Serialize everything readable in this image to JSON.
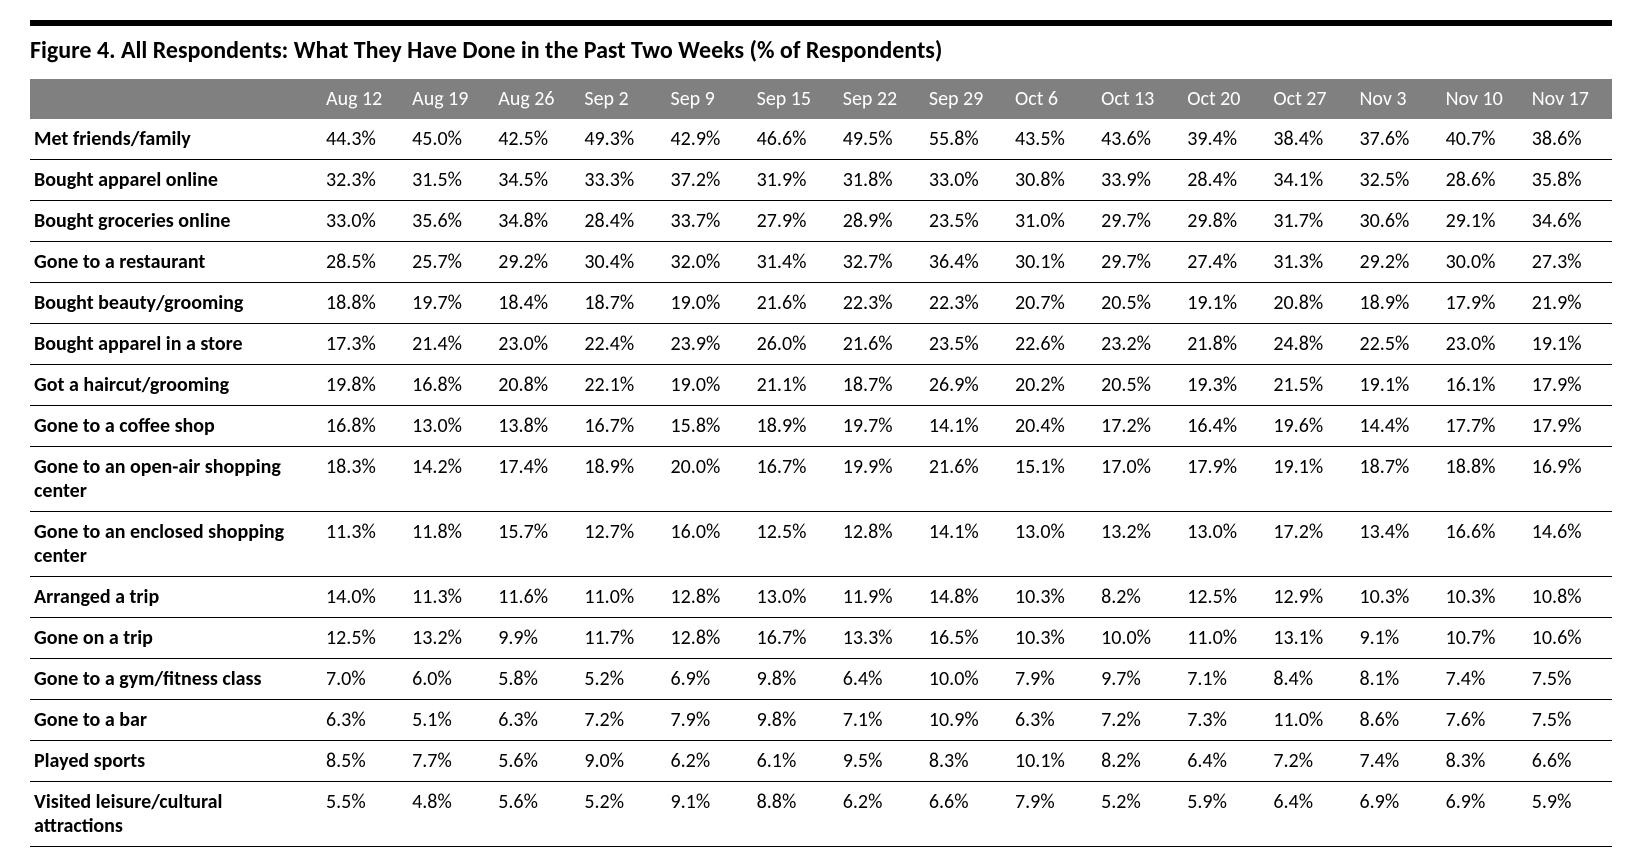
{
  "figure": {
    "title": "Figure 4. All Respondents: What They Have Done in the Past Two Weeks (% of Respondents)",
    "type": "table",
    "columns": [
      "Aug 12",
      "Aug 19",
      "Aug 26",
      "Sep 2",
      "Sep 9",
      "Sep 15",
      "Sep 22",
      "Sep 29",
      "Oct 6",
      "Oct 13",
      "Oct 20",
      "Oct 27",
      "Nov 3",
      "Nov 10",
      "Nov 17"
    ],
    "rows": [
      {
        "label": "Met friends/family",
        "values": [
          "44.3%",
          "45.0%",
          "42.5%",
          "49.3%",
          "42.9%",
          "46.6%",
          "49.5%",
          "55.8%",
          "43.5%",
          "43.6%",
          "39.4%",
          "38.4%",
          "37.6%",
          "40.7%",
          "38.6%"
        ]
      },
      {
        "label": "Bought apparel online",
        "values": [
          "32.3%",
          "31.5%",
          "34.5%",
          "33.3%",
          "37.2%",
          "31.9%",
          "31.8%",
          "33.0%",
          "30.8%",
          "33.9%",
          "28.4%",
          "34.1%",
          "32.5%",
          "28.6%",
          "35.8%"
        ]
      },
      {
        "label": "Bought groceries online",
        "values": [
          "33.0%",
          "35.6%",
          "34.8%",
          "28.4%",
          "33.7%",
          "27.9%",
          "28.9%",
          "23.5%",
          "31.0%",
          "29.7%",
          "29.8%",
          "31.7%",
          "30.6%",
          "29.1%",
          "34.6%"
        ]
      },
      {
        "label": "Gone to a restaurant",
        "values": [
          "28.5%",
          "25.7%",
          "29.2%",
          "30.4%",
          "32.0%",
          "31.4%",
          "32.7%",
          "36.4%",
          "30.1%",
          "29.7%",
          "27.4%",
          "31.3%",
          "29.2%",
          "30.0%",
          "27.3%"
        ]
      },
      {
        "label": "Bought beauty/grooming",
        "values": [
          "18.8%",
          "19.7%",
          "18.4%",
          "18.7%",
          "19.0%",
          "21.6%",
          "22.3%",
          "22.3%",
          "20.7%",
          "20.5%",
          "19.1%",
          "20.8%",
          "18.9%",
          "17.9%",
          "21.9%"
        ]
      },
      {
        "label": "Bought apparel in a store",
        "values": [
          "17.3%",
          "21.4%",
          "23.0%",
          "22.4%",
          "23.9%",
          "26.0%",
          "21.6%",
          "23.5%",
          "22.6%",
          "23.2%",
          "21.8%",
          "24.8%",
          "22.5%",
          "23.0%",
          "19.1%"
        ]
      },
      {
        "label": "Got a haircut/grooming",
        "values": [
          "19.8%",
          "16.8%",
          "20.8%",
          "22.1%",
          "19.0%",
          "21.1%",
          "18.7%",
          "26.9%",
          "20.2%",
          "20.5%",
          "19.3%",
          "21.5%",
          "19.1%",
          "16.1%",
          "17.9%"
        ]
      },
      {
        "label": "Gone to a coffee shop",
        "values": [
          "16.8%",
          "13.0%",
          "13.8%",
          "16.7%",
          "15.8%",
          "18.9%",
          "19.7%",
          "14.1%",
          "20.4%",
          "17.2%",
          "16.4%",
          "19.6%",
          "14.4%",
          "17.7%",
          "17.9%"
        ]
      },
      {
        "label": "Gone to an open-air shopping center",
        "values": [
          "18.3%",
          "14.2%",
          "17.4%",
          "18.9%",
          "20.0%",
          "16.7%",
          "19.9%",
          "21.6%",
          "15.1%",
          "17.0%",
          "17.9%",
          "19.1%",
          "18.7%",
          "18.8%",
          "16.9%"
        ]
      },
      {
        "label": "Gone to an enclosed shopping center",
        "values": [
          "11.3%",
          "11.8%",
          "15.7%",
          "12.7%",
          "16.0%",
          "12.5%",
          "12.8%",
          "14.1%",
          "13.0%",
          "13.2%",
          "13.0%",
          "17.2%",
          "13.4%",
          "16.6%",
          "14.6%"
        ]
      },
      {
        "label": "Arranged a trip",
        "values": [
          "14.0%",
          "11.3%",
          "11.6%",
          "11.0%",
          "12.8%",
          "13.0%",
          "11.9%",
          "14.8%",
          "10.3%",
          "8.2%",
          "12.5%",
          "12.9%",
          "10.3%",
          "10.3%",
          "10.8%"
        ]
      },
      {
        "label": "Gone on a trip",
        "values": [
          "12.5%",
          "13.2%",
          "9.9%",
          "11.7%",
          "12.8%",
          "16.7%",
          "13.3%",
          "16.5%",
          "10.3%",
          "10.0%",
          "11.0%",
          "13.1%",
          "9.1%",
          "10.7%",
          "10.6%"
        ]
      },
      {
        "label": "Gone to a gym/fitness class",
        "values": [
          "7.0%",
          "6.0%",
          "5.8%",
          "5.2%",
          "6.9%",
          "9.8%",
          "6.4%",
          "10.0%",
          "7.9%",
          "9.7%",
          "7.1%",
          "8.4%",
          "8.1%",
          "7.4%",
          "7.5%"
        ]
      },
      {
        "label": "Gone to a bar",
        "values": [
          "6.3%",
          "5.1%",
          "6.3%",
          "7.2%",
          "7.9%",
          "9.8%",
          "7.1%",
          "10.9%",
          "6.3%",
          "7.2%",
          "7.3%",
          "11.0%",
          "8.6%",
          "7.6%",
          "7.5%"
        ]
      },
      {
        "label": "Played sports",
        "values": [
          "8.5%",
          "7.7%",
          "5.6%",
          "9.0%",
          "6.2%",
          "6.1%",
          "9.5%",
          "8.3%",
          "10.1%",
          "8.2%",
          "6.4%",
          "7.2%",
          "7.4%",
          "8.3%",
          "6.6%"
        ]
      },
      {
        "label": "Visited leisure/cultural attractions",
        "values": [
          "5.5%",
          "4.8%",
          "5.6%",
          "5.2%",
          "9.1%",
          "8.8%",
          "6.2%",
          "6.6%",
          "7.9%",
          "5.2%",
          "5.9%",
          "6.4%",
          "6.9%",
          "6.9%",
          "5.9%"
        ]
      }
    ],
    "style": {
      "header_bg": "#808080",
      "header_text_color": "#ffffff",
      "body_text_color": "#000000",
      "row_border_color": "#000000",
      "top_border_width": 6,
      "title_fontsize": 24,
      "cell_fontsize": 20,
      "font_family": "Calibri"
    }
  }
}
